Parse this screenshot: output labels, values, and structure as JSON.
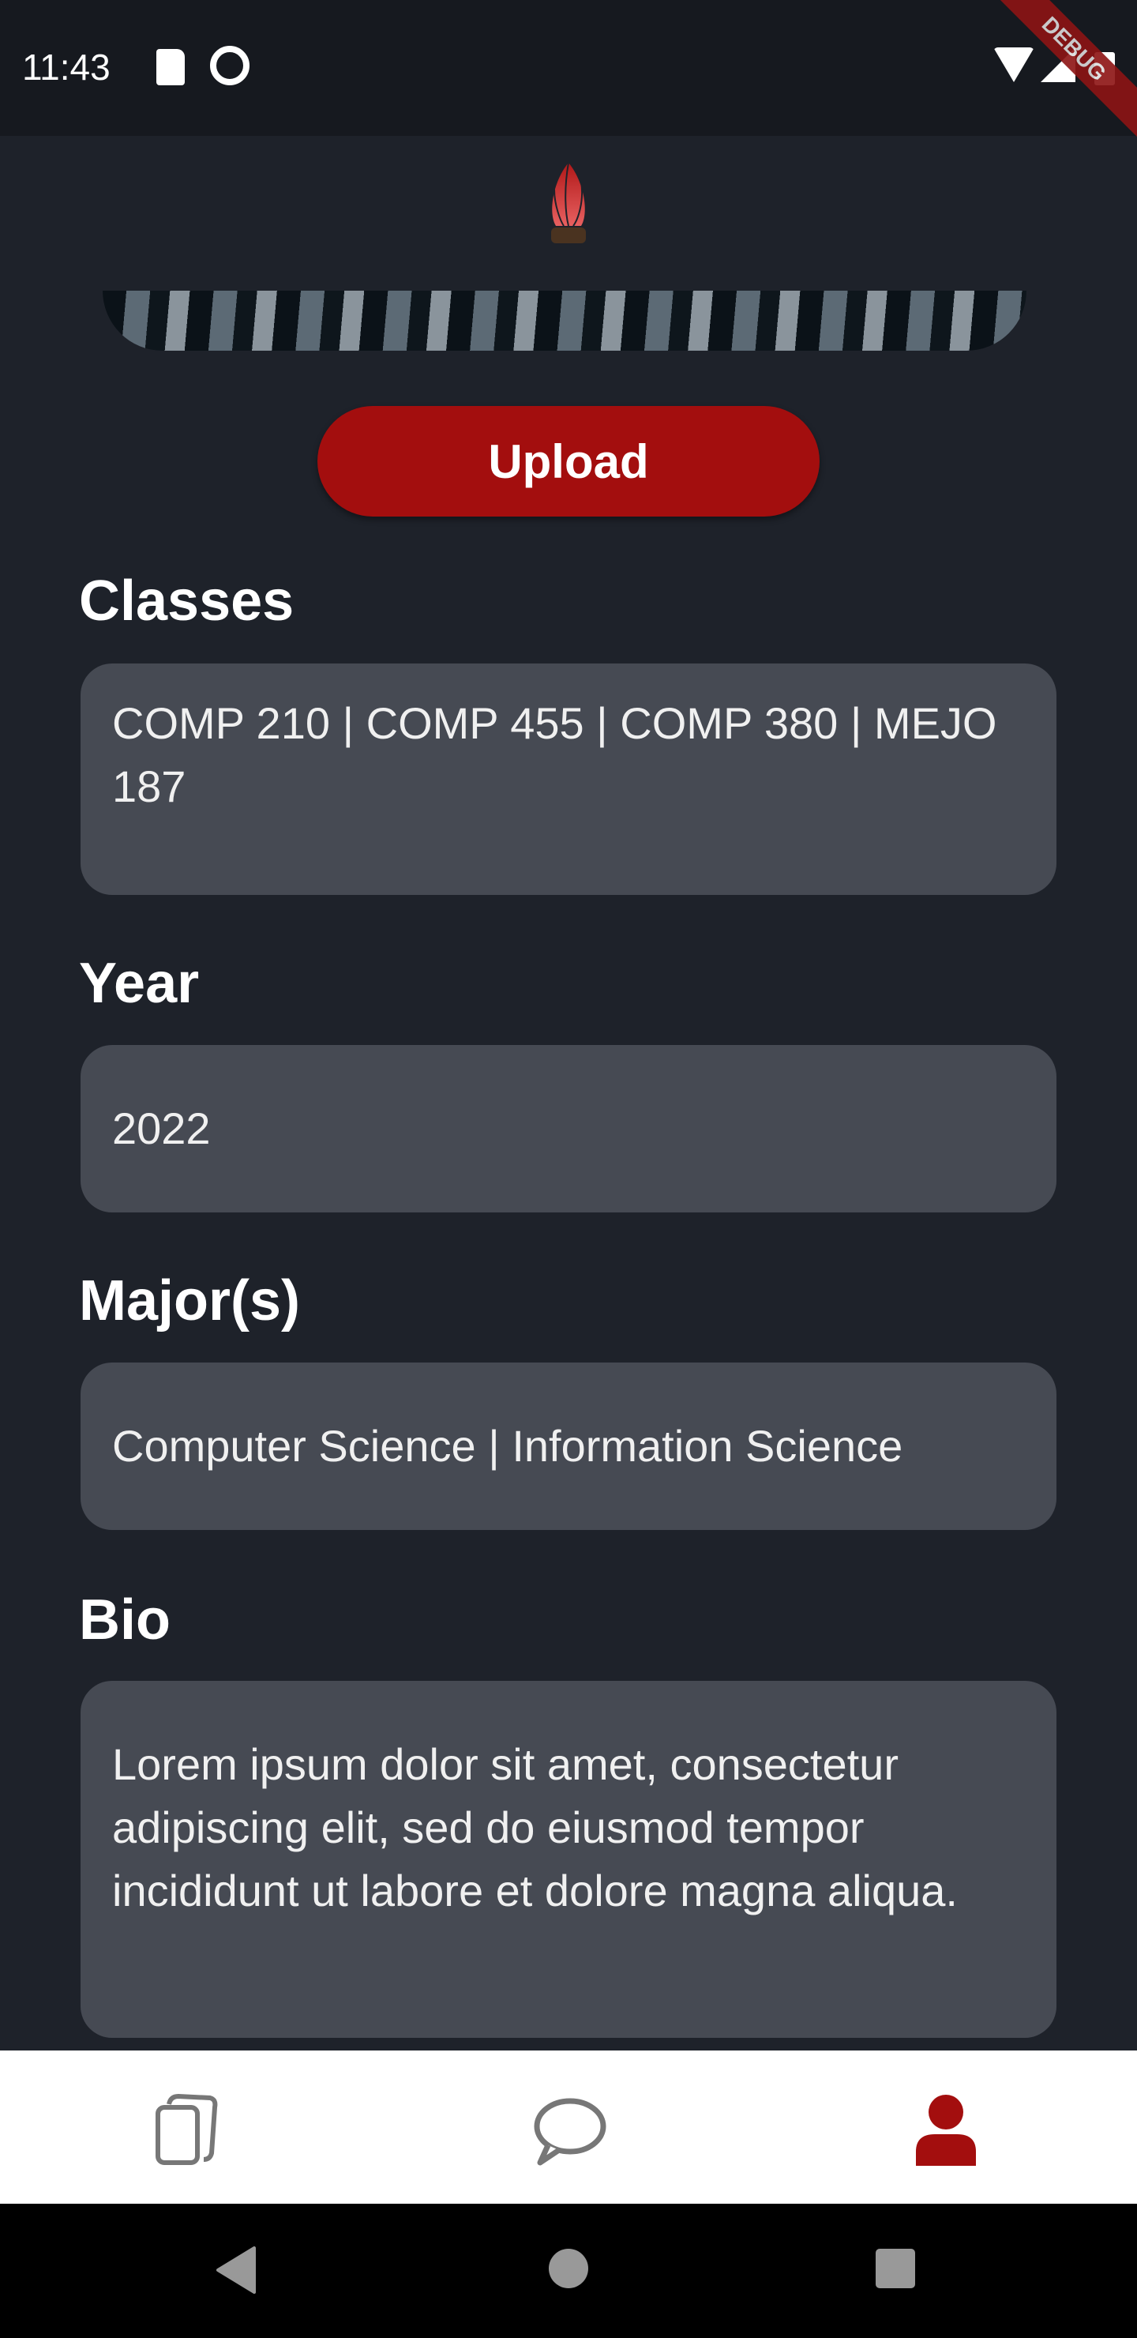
{
  "status_bar": {
    "time": "11:43",
    "icons": [
      "sd-card-icon",
      "data-saver-icon",
      "wifi-icon",
      "signal-icon",
      "battery-icon"
    ],
    "debug_banner": "DEBUG"
  },
  "header": {
    "logo": "flame-logo"
  },
  "profile": {
    "upload_label": "Upload"
  },
  "fields": [
    {
      "label": "Classes",
      "value": "COMP 210 | COMP 455 | COMP 380 | MEJO 187"
    },
    {
      "label": "Year",
      "value": "2022"
    },
    {
      "label": "Major(s)",
      "value": "Computer Science | Information Science"
    },
    {
      "label": "Bio",
      "value": "Lorem ipsum dolor sit amet, consectetur adipiscing elit, sed do eiusmod tempor incididunt ut labore et dolore magna aliqua."
    }
  ],
  "bottom_nav": {
    "items": [
      {
        "icon": "cards-icon",
        "active": false
      },
      {
        "icon": "chat-bubble-icon",
        "active": false
      },
      {
        "icon": "person-icon",
        "active": true
      }
    ],
    "active_color": "#a30e0e",
    "inactive_color": "#777777"
  },
  "colors": {
    "accent": "#a30e0e",
    "background": "#1e222a",
    "field": "#464a53"
  }
}
